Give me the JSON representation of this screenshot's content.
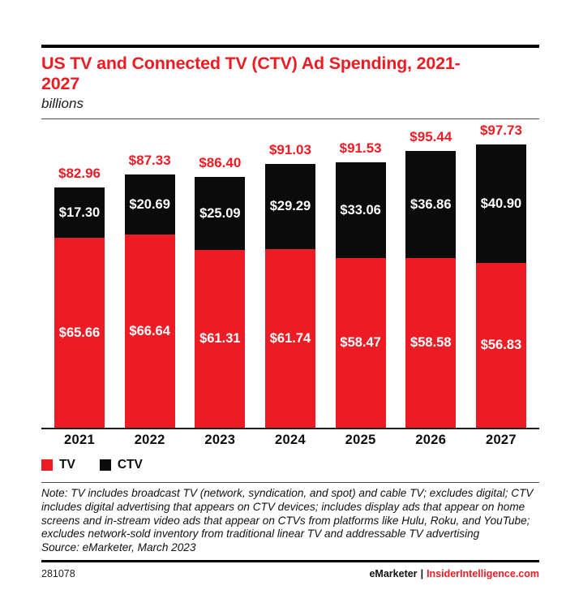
{
  "header": {
    "title": "US TV and Connected TV (CTV) Ad Spending, 2021-2027",
    "subtitle": "billions"
  },
  "chart_data": {
    "type": "bar",
    "stacked": true,
    "title": "US TV and Connected TV (CTV) Ad Spending, 2021-2027",
    "subtitle": "billions",
    "unit": "billions of US dollars",
    "value_prefix": "$",
    "categories": [
      "2021",
      "2022",
      "2023",
      "2024",
      "2025",
      "2026",
      "2027"
    ],
    "series": [
      {
        "name": "TV",
        "color": "#ED1C24",
        "values": [
          65.66,
          66.64,
          61.31,
          61.74,
          58.47,
          58.58,
          56.83
        ]
      },
      {
        "name": "CTV",
        "color": "#0B0B0B",
        "values": [
          17.3,
          20.69,
          25.09,
          29.29,
          33.06,
          36.86,
          40.9
        ]
      }
    ],
    "totals": [
      82.96,
      87.33,
      86.4,
      91.03,
      91.53,
      95.44,
      97.73
    ],
    "xlabel": "",
    "ylabel": "billions",
    "ylim": [
      0,
      100
    ],
    "grid": false,
    "legend_position": "bottom-left"
  },
  "legend": {
    "items": [
      {
        "label": "TV",
        "color": "#ED1C24"
      },
      {
        "label": "CTV",
        "color": "#0B0B0B"
      }
    ]
  },
  "note": {
    "text": "Note: TV includes broadcast TV (network, syndication, and spot) and cable TV; excludes digital; CTV includes digital advertising that appears on CTV devices; includes display ads that appear on home screens and in-stream video ads that appear on CTVs from platforms like Hulu, Roku, and YouTube; excludes network-sold inventory from traditional linear TV and addressable TV advertising",
    "source": "Source: eMarketer, March 2023"
  },
  "footer": {
    "chart_id": "281078",
    "brand": "eMarketer",
    "separator": "|",
    "site": "InsiderIntelligence.com"
  },
  "colors": {
    "accent_red": "#ED1C24",
    "bar_black": "#0B0B0B"
  }
}
